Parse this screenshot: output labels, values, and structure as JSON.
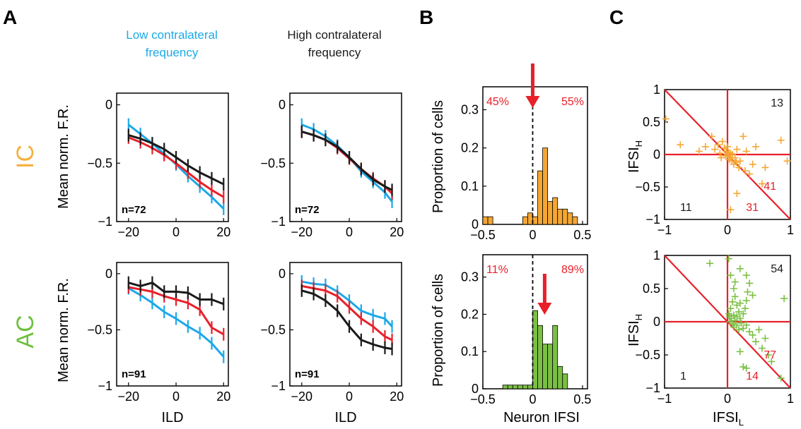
{
  "panel_labels": [
    "A",
    "B",
    "C"
  ],
  "column_titles": {
    "low": [
      "Low contralateral",
      "frequency"
    ],
    "high": [
      "High contralateral",
      "frequency"
    ]
  },
  "row_labels": {
    "ic": {
      "text": "IC",
      "color": "#f5b041"
    },
    "ac": {
      "text": "AC",
      "color": "#6fbf3f"
    }
  },
  "axis_text": {
    "mean_fr_ylabel": "Mean norm. F.R.",
    "ild_xlabel": "ILD",
    "proportion_ylabel": "Proportion of cells",
    "neuron_ifsi_xlabel": "Neuron IFSI",
    "ifsi_h_main": "IFSI",
    "ifsi_h_sub": "H",
    "ifsi_l_main": "IFSI",
    "ifsi_l_sub": "L"
  },
  "colors": {
    "blue": "#1ca9e8",
    "red": "#e8202a",
    "black": "#1a1a1a",
    "ic_orange": "#f5a733",
    "ac_green": "#7bc043"
  },
  "chart_data": [
    {
      "id": "A-IC-low",
      "type": "line",
      "x": [
        -20,
        -15,
        -10,
        -5,
        0,
        5,
        10,
        15,
        20
      ],
      "xlim": [
        -25,
        22
      ],
      "ylim": [
        -1,
        0.1
      ],
      "xticks": [
        -20,
        0,
        20
      ],
      "yticks": [
        0,
        -0.5,
        -1
      ],
      "xtick_labels": [
        "−20",
        "0",
        "20"
      ],
      "ytick_labels": [
        "0",
        "−0.5",
        "−1"
      ],
      "xlabel": "",
      "annotation": "n=72",
      "series": [
        {
          "color": "#1ca9e8",
          "y": [
            -0.17,
            -0.25,
            -0.33,
            -0.42,
            -0.51,
            -0.61,
            -0.7,
            -0.79,
            -0.89
          ]
        },
        {
          "color": "#e8202a",
          "y": [
            -0.28,
            -0.32,
            -0.37,
            -0.43,
            -0.5,
            -0.58,
            -0.66,
            -0.73,
            -0.79
          ]
        },
        {
          "color": "#1a1a1a",
          "y": [
            -0.26,
            -0.29,
            -0.33,
            -0.38,
            -0.45,
            -0.52,
            -0.58,
            -0.63,
            -0.68
          ]
        }
      ]
    },
    {
      "id": "A-IC-high",
      "type": "line",
      "x": [
        -20,
        -15,
        -10,
        -5,
        0,
        5,
        10,
        15,
        18
      ],
      "xlim": [
        -25,
        22
      ],
      "ylim": [
        -1,
        0.1
      ],
      "xticks": [
        -20,
        0,
        20
      ],
      "yticks": [
        0,
        -0.5,
        -1
      ],
      "xtick_labels": [
        "−20",
        "0",
        "20"
      ],
      "ytick_labels": [
        "0",
        "−0.5",
        "−1"
      ],
      "xlabel": "",
      "annotation": "n=72",
      "series": [
        {
          "color": "#1ca9e8",
          "y": [
            -0.17,
            -0.21,
            -0.27,
            -0.35,
            -0.45,
            -0.57,
            -0.66,
            -0.75,
            -0.83
          ]
        },
        {
          "color": "#e8202a",
          "y": [
            -0.23,
            -0.26,
            -0.3,
            -0.37,
            -0.46,
            -0.55,
            -0.63,
            -0.7,
            -0.76
          ]
        },
        {
          "color": "#1a1a1a",
          "y": [
            -0.23,
            -0.26,
            -0.3,
            -0.36,
            -0.45,
            -0.55,
            -0.64,
            -0.7,
            -0.73
          ]
        }
      ]
    },
    {
      "id": "A-AC-low",
      "type": "line",
      "x": [
        -20,
        -15,
        -10,
        -5,
        0,
        5,
        10,
        15,
        20
      ],
      "xlim": [
        -25,
        22
      ],
      "ylim": [
        -1,
        0.1
      ],
      "xticks": [
        -20,
        0,
        20
      ],
      "yticks": [
        0,
        -0.5,
        -1
      ],
      "xtick_labels": [
        "−20",
        "0",
        "20"
      ],
      "ytick_labels": [
        "0",
        "−0.5",
        "−1"
      ],
      "xlabel": "ILD",
      "annotation": "n=91",
      "series": [
        {
          "color": "#1ca9e8",
          "y": [
            -0.13,
            -0.19,
            -0.26,
            -0.34,
            -0.4,
            -0.47,
            -0.53,
            -0.62,
            -0.74
          ]
        },
        {
          "color": "#e8202a",
          "y": [
            -0.12,
            -0.14,
            -0.16,
            -0.2,
            -0.23,
            -0.26,
            -0.32,
            -0.48,
            -0.54
          ]
        },
        {
          "color": "#1a1a1a",
          "y": [
            -0.08,
            -0.11,
            -0.08,
            -0.16,
            -0.16,
            -0.17,
            -0.23,
            -0.23,
            -0.27
          ]
        }
      ]
    },
    {
      "id": "A-AC-high",
      "type": "line",
      "x": [
        -20,
        -15,
        -10,
        -5,
        0,
        5,
        10,
        15,
        18
      ],
      "xlim": [
        -25,
        22
      ],
      "ylim": [
        -1,
        0.1
      ],
      "xticks": [
        -20,
        0,
        20
      ],
      "yticks": [
        0,
        -0.5,
        -1
      ],
      "xtick_labels": [
        "−20",
        "0",
        "20"
      ],
      "ytick_labels": [
        "0",
        "−0.5",
        "−1"
      ],
      "xlabel": "ILD",
      "annotation": "n=91",
      "series": [
        {
          "color": "#1ca9e8",
          "y": [
            -0.07,
            -0.09,
            -0.1,
            -0.16,
            -0.24,
            -0.33,
            -0.37,
            -0.4,
            -0.47
          ]
        },
        {
          "color": "#e8202a",
          "y": [
            -0.11,
            -0.13,
            -0.15,
            -0.2,
            -0.3,
            -0.4,
            -0.47,
            -0.56,
            -0.59
          ]
        },
        {
          "color": "#1a1a1a",
          "y": [
            -0.15,
            -0.18,
            -0.24,
            -0.33,
            -0.47,
            -0.59,
            -0.63,
            -0.66,
            -0.67
          ]
        }
      ]
    },
    {
      "id": "B-IC",
      "type": "bar",
      "bin_edges_start": -0.5,
      "bin_width": 0.05,
      "values": [
        0.02,
        0.02,
        0,
        0,
        0,
        0,
        0,
        0,
        0.02,
        0.03,
        0.02,
        0.14,
        0.2,
        0.06,
        0.07,
        0.04,
        0.04,
        0.03,
        0.02,
        0,
        0,
        0
      ],
      "color": "#f5a733",
      "xlim": [
        -0.5,
        0.55
      ],
      "ylim": [
        0,
        0.36
      ],
      "xticks": [
        -0.5,
        0,
        0.5
      ],
      "yticks": [
        0,
        0.1,
        0.2,
        0.3
      ],
      "xtick_labels": [
        "−0.5",
        "0",
        "0.5"
      ],
      "ytick_labels": [
        "0",
        "0.1",
        "0.2",
        "0.3"
      ],
      "ylabel": "Proportion of cells",
      "xlabel": "",
      "dashed_line_x": 0,
      "arrow_x": 0,
      "left_pct": "45%",
      "right_pct": "55%"
    },
    {
      "id": "B-AC",
      "type": "bar",
      "bin_edges_start": -0.3,
      "bin_width": 0.05,
      "values": [
        0.01,
        0.01,
        0.01,
        0.01,
        0.01,
        0.01,
        0.21,
        0.17,
        0.12,
        0.12,
        0.17,
        0.06,
        0.04,
        0
      ],
      "color": "#7bc043",
      "xlim": [
        -0.5,
        0.55
      ],
      "ylim": [
        0,
        0.36
      ],
      "xticks": [
        -0.5,
        0,
        0.5
      ],
      "yticks": [
        0,
        0.1,
        0.2,
        0.3
      ],
      "xtick_labels": [
        "−0.5",
        "0",
        "0.5"
      ],
      "ytick_labels": [
        "0",
        "0.1",
        "0.2",
        "0.3"
      ],
      "ylabel": "Proportion of cells",
      "xlabel": "Neuron IFSI",
      "dashed_line_x": 0,
      "arrow_x": 0.12,
      "left_pct": "11%",
      "right_pct": "89%"
    },
    {
      "id": "C-IC",
      "type": "scatter",
      "color": "#f5a733",
      "xlim": [
        -1,
        1
      ],
      "ylim": [
        -1,
        1
      ],
      "xticks": [
        -1,
        0,
        1
      ],
      "yticks": [
        -1,
        -0.5,
        0,
        0.5,
        1
      ],
      "xtick_labels": [
        "−1",
        "0",
        "1"
      ],
      "ytick_labels": [
        "−1",
        "−0.5",
        "0",
        "0.5",
        "1"
      ],
      "counts": {
        "upper_right": "13",
        "lower_left": "11",
        "lower_right_a": "41",
        "lower_right_b": "31"
      },
      "points": [
        [
          -0.98,
          0.55
        ],
        [
          -0.75,
          0.15
        ],
        [
          -0.45,
          0.05
        ],
        [
          -0.35,
          0.12
        ],
        [
          -0.25,
          0.28
        ],
        [
          -0.2,
          0.08
        ],
        [
          -0.15,
          0.15
        ],
        [
          -0.12,
          0.02
        ],
        [
          -0.1,
          -0.05
        ],
        [
          -0.05,
          0.1
        ],
        [
          -0.03,
          -0.02
        ],
        [
          -0.02,
          0.05
        ],
        [
          0,
          0
        ],
        [
          0.01,
          -0.03
        ],
        [
          0.02,
          0.03
        ],
        [
          0.03,
          -0.08
        ],
        [
          0.05,
          0.02
        ],
        [
          0.05,
          -0.05
        ],
        [
          0.07,
          -0.1
        ],
        [
          0.08,
          0.0
        ],
        [
          0.1,
          -0.15
        ],
        [
          0.12,
          -0.05
        ],
        [
          0.14,
          -0.12
        ],
        [
          0.15,
          0.08
        ],
        [
          0.18,
          -0.2
        ],
        [
          0.2,
          -0.1
        ],
        [
          0.25,
          0.28
        ],
        [
          0.28,
          -0.25
        ],
        [
          0.3,
          0.05
        ],
        [
          0.35,
          -0.3
        ],
        [
          0.4,
          -0.15
        ],
        [
          0.45,
          0.12
        ],
        [
          0.55,
          -0.45
        ],
        [
          0.6,
          -0.2
        ],
        [
          0.85,
          0.22
        ],
        [
          0.95,
          -0.1
        ],
        [
          0.05,
          -0.85
        ],
        [
          0.15,
          -0.6
        ],
        [
          -0.08,
          0.2
        ],
        [
          0.0,
          0.12
        ]
      ]
    },
    {
      "id": "C-AC",
      "type": "scatter",
      "color": "#7bc043",
      "xlim": [
        -1,
        1
      ],
      "ylim": [
        -1,
        1
      ],
      "xticks": [
        -1,
        0,
        1
      ],
      "yticks": [
        -1,
        -0.5,
        0,
        0.5,
        1
      ],
      "xtick_labels": [
        "−1",
        "0",
        "1"
      ],
      "ytick_labels": [
        "−1",
        "−0.5",
        "0",
        "0.5",
        "1"
      ],
      "counts": {
        "upper_right": "54",
        "lower_left": "1",
        "lower_right_a": "77",
        "lower_right_b": "14"
      },
      "points": [
        [
          -0.28,
          0.88
        ],
        [
          0.02,
          0.95
        ],
        [
          0.05,
          0.7
        ],
        [
          0.1,
          0.5
        ],
        [
          0.12,
          0.38
        ],
        [
          0.08,
          0.3
        ],
        [
          0.15,
          0.25
        ],
        [
          0.05,
          0.2
        ],
        [
          0.02,
          0.12
        ],
        [
          0.1,
          0.1
        ],
        [
          0.06,
          0.05
        ],
        [
          0.04,
          0.0
        ],
        [
          0.08,
          -0.03
        ],
        [
          0.12,
          0.02
        ],
        [
          0.15,
          0.08
        ],
        [
          0.18,
          0.15
        ],
        [
          0.2,
          0.05
        ],
        [
          0.22,
          -0.02
        ],
        [
          0.25,
          0.12
        ],
        [
          0.28,
          0.2
        ],
        [
          0.3,
          0.32
        ],
        [
          0.32,
          0.45
        ],
        [
          0.35,
          0.58
        ],
        [
          0.3,
          0.7
        ],
        [
          0.2,
          0.8
        ],
        [
          0.25,
          -0.1
        ],
        [
          0.3,
          -0.05
        ],
        [
          0.35,
          -0.15
        ],
        [
          0.4,
          -0.2
        ],
        [
          0.45,
          -0.3
        ],
        [
          0.5,
          -0.12
        ],
        [
          0.55,
          -0.4
        ],
        [
          0.6,
          -0.25
        ],
        [
          0.65,
          -0.5
        ],
        [
          0.7,
          -0.6
        ],
        [
          0.85,
          -0.85
        ],
        [
          0.2,
          -0.45
        ],
        [
          0.25,
          -0.68
        ],
        [
          0.3,
          -0.7
        ],
        [
          0.03,
          0.08
        ],
        [
          0.1,
          -0.08
        ],
        [
          0.15,
          -0.05
        ],
        [
          0.18,
          -0.12
        ],
        [
          0.2,
          0.28
        ],
        [
          0.12,
          0.6
        ],
        [
          0.4,
          0.4
        ],
        [
          0.9,
          0.35
        ]
      ]
    }
  ]
}
